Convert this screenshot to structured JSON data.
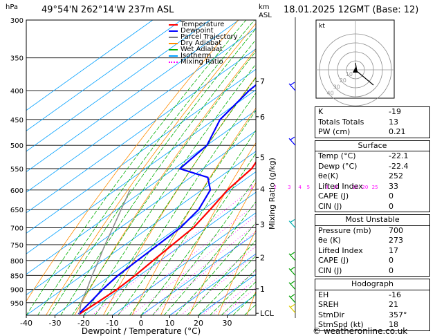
{
  "header": {
    "location": "49°54'N  262°14'W  237m  ASL",
    "datetime": "18.01.2025  12GMT  (Base: 12)",
    "hpa_unit": "hPa",
    "km_unit": "km",
    "asl_unit": "ASL"
  },
  "legend": [
    {
      "label": "Temperature",
      "color": "#ff0000"
    },
    {
      "label": "Dewpoint",
      "color": "#0000ff"
    },
    {
      "label": "Parcel Trajectory",
      "color": "#808080"
    },
    {
      "label": "Dry Adiabat",
      "color": "#ff8c00"
    },
    {
      "label": "Wet Adiabat",
      "color": "#00b000"
    },
    {
      "label": "Isotherm",
      "color": "#00a0ff"
    },
    {
      "label": "Mixing Ratio",
      "color": "#ff00ff"
    }
  ],
  "hodograph": {
    "unit_label": "kt",
    "ring_labels": [
      "10",
      "20",
      "30",
      "40"
    ]
  },
  "indices": [
    {
      "label": "K",
      "value": "-19"
    },
    {
      "label": "Totals Totals",
      "value": "13"
    },
    {
      "label": "PW (cm)",
      "value": "0.21"
    }
  ],
  "surface": {
    "title": "Surface",
    "rows": [
      {
        "label": "Temp (°C)",
        "value": "-22.1"
      },
      {
        "label": "Dewp (°C)",
        "value": "-22.4"
      },
      {
        "label": "θe(K)",
        "value": "252"
      },
      {
        "label": "Lifted Index",
        "value": "33"
      },
      {
        "label": "CAPE (J)",
        "value": "0"
      },
      {
        "label": "CIN (J)",
        "value": "0"
      }
    ]
  },
  "most_unstable": {
    "title": "Most Unstable",
    "rows": [
      {
        "label": "Pressure (mb)",
        "value": "700"
      },
      {
        "label": "θe (K)",
        "value": "273"
      },
      {
        "label": "Lifted Index",
        "value": "17"
      },
      {
        "label": "CAPE (J)",
        "value": "0"
      },
      {
        "label": "CIN (J)",
        "value": "0"
      }
    ]
  },
  "hodograph_table": {
    "title": "Hodograph",
    "rows": [
      {
        "label": "EH",
        "value": "-16"
      },
      {
        "label": "SREH",
        "value": "21"
      },
      {
        "label": "StmDir",
        "value": "357°"
      },
      {
        "label": "StmSpd (kt)",
        "value": "18"
      }
    ]
  },
  "copyright": "© weatheronline.co.uk",
  "chart_data": {
    "type": "line",
    "xlabel": "Dewpoint / Temperature (°C)",
    "ylabel_right": "Mixing Ratio (g/kg)",
    "pressure_levels": [
      300,
      350,
      400,
      450,
      500,
      550,
      600,
      650,
      700,
      750,
      800,
      850,
      900,
      950
    ],
    "x_ticks": [
      -40,
      -30,
      -20,
      -10,
      0,
      10,
      20,
      30
    ],
    "xlim": [
      -40,
      40
    ],
    "ylim": [
      1000,
      300
    ],
    "km_ticks": [
      {
        "km": "1",
        "p": 898
      },
      {
        "km": "2",
        "p": 790
      },
      {
        "km": "3",
        "p": 690
      },
      {
        "km": "4",
        "p": 598
      },
      {
        "km": "5",
        "p": 525
      },
      {
        "km": "6",
        "p": 445
      },
      {
        "km": "7",
        "p": 385
      },
      {
        "km": "LCL",
        "p": 992
      }
    ],
    "mixing_ratio_labels": [
      "1",
      "2",
      "3",
      "4",
      "5",
      "8",
      "10",
      "16",
      "20",
      "25"
    ],
    "series": [
      {
        "name": "Temperature",
        "color": "#ff0000",
        "p": [
          995,
          950,
          900,
          850,
          800,
          750,
          700,
          650,
          600,
          550,
          500,
          450,
          400,
          350,
          300
        ],
        "t": [
          -22.1,
          -21.5,
          -21.0,
          -21.5,
          -22.5,
          -23.5,
          -24.5,
          -27.5,
          -31.0,
          -33.0,
          -39.0,
          -44.0,
          -49.0,
          -56.0,
          -62.0
        ]
      },
      {
        "name": "Dewpoint",
        "color": "#0000ff",
        "p": [
          995,
          950,
          900,
          850,
          800,
          750,
          700,
          650,
          600,
          570,
          550,
          500,
          450,
          400,
          350,
          300
        ],
        "t": [
          -22.4,
          -24.0,
          -26.0,
          -27.5,
          -28.0,
          -28.5,
          -29.0,
          -31.5,
          -37.0,
          -44.0,
          -58.0,
          -60.0,
          -68.0,
          -72.0,
          -74.0,
          -80.0
        ]
      },
      {
        "name": "Parcel Trajectory",
        "color": "#909090",
        "p": [
          995,
          950,
          900,
          850,
          800,
          750,
          700,
          650,
          600
        ],
        "t": [
          -22.2,
          -27.0,
          -31.5,
          -36.5,
          -41.5,
          -47.0,
          -52.5,
          -58.5,
          -65.0
        ]
      }
    ]
  }
}
